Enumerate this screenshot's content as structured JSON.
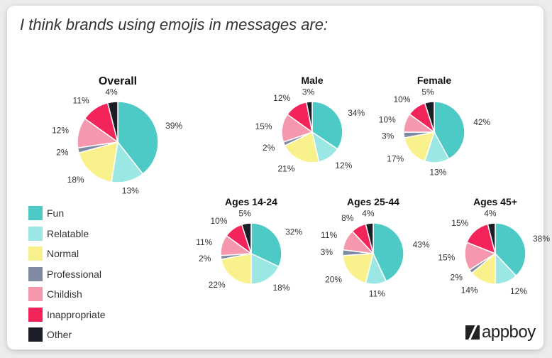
{
  "headline": "I think brands using emojis in messages are:",
  "brand": "appboy",
  "colors": {
    "Fun": "#4ecac6",
    "Relatable": "#9be7e3",
    "Normal": "#f9f28c",
    "Professional": "#818aa3",
    "Childish": "#f598ad",
    "Inappropriate": "#f3245a",
    "Other": "#1b1d27"
  },
  "chart_data": [
    {
      "type": "pie",
      "title": "Overall",
      "categories": [
        "Fun",
        "Relatable",
        "Normal",
        "Professional",
        "Childish",
        "Inappropriate",
        "Other"
      ],
      "values": [
        39,
        13,
        18,
        2,
        12,
        11,
        4
      ],
      "labels": [
        "39%",
        "13%",
        "18%",
        "2%",
        "12%",
        "11%",
        "4%"
      ]
    },
    {
      "type": "pie",
      "title": "Male",
      "categories": [
        "Fun",
        "Relatable",
        "Normal",
        "Professional",
        "Childish",
        "Inappropriate",
        "Other"
      ],
      "values": [
        34,
        12,
        21,
        2,
        15,
        12,
        3
      ],
      "labels": [
        "34%",
        "12%",
        "21%",
        "2%",
        "15%",
        "12%",
        "3%"
      ]
    },
    {
      "type": "pie",
      "title": "Female",
      "categories": [
        "Fun",
        "Relatable",
        "Normal",
        "Professional",
        "Childish",
        "Inappropriate",
        "Other"
      ],
      "values": [
        42,
        13,
        17,
        3,
        10,
        10,
        5
      ],
      "labels": [
        "42%",
        "13%",
        "17%",
        "3%",
        "10%",
        "10%",
        "5%"
      ]
    },
    {
      "type": "pie",
      "title": "Ages 14-24",
      "categories": [
        "Fun",
        "Relatable",
        "Normal",
        "Professional",
        "Childish",
        "Inappropriate",
        "Other"
      ],
      "values": [
        32,
        18,
        22,
        2,
        11,
        10,
        5
      ],
      "labels": [
        "32%",
        "18%",
        "22%",
        "2%",
        "11%",
        "10%",
        "5%"
      ]
    },
    {
      "type": "pie",
      "title": "Ages 25-44",
      "categories": [
        "Fun",
        "Relatable",
        "Normal",
        "Professional",
        "Childish",
        "Inappropriate",
        "Other"
      ],
      "values": [
        43,
        11,
        20,
        3,
        11,
        8,
        4
      ],
      "labels": [
        "43%",
        "11%",
        "20%",
        "3%",
        "11%",
        "8%",
        "4%"
      ]
    },
    {
      "type": "pie",
      "title": "Ages 45+",
      "categories": [
        "Fun",
        "Relatable",
        "Normal",
        "Professional",
        "Childish",
        "Inappropriate",
        "Other"
      ],
      "values": [
        38,
        12,
        14,
        2,
        15,
        15,
        4
      ],
      "labels": [
        "38%",
        "12%",
        "14%",
        "2%",
        "15%",
        "15%",
        "4%"
      ]
    }
  ],
  "legend": [
    "Fun",
    "Relatable",
    "Normal",
    "Professional",
    "Childish",
    "Inappropriate",
    "Other"
  ]
}
